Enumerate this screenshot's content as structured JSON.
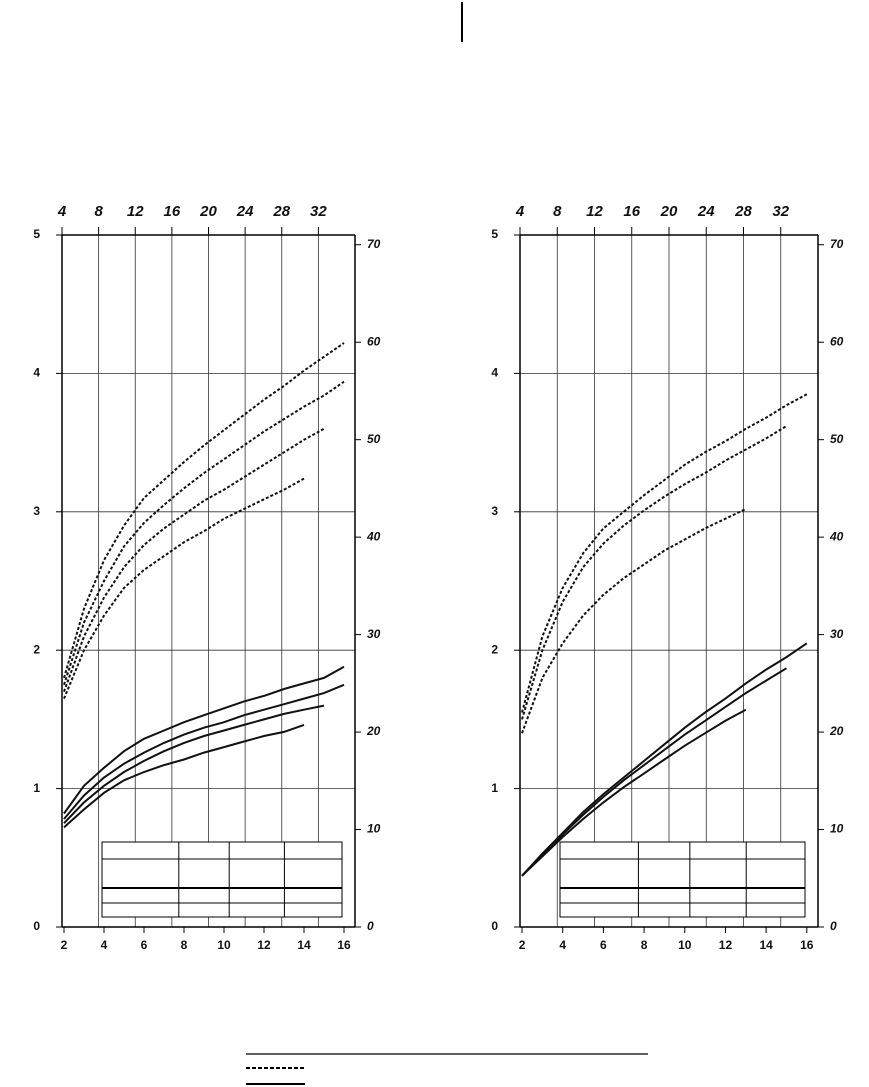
{
  "chart_data": [
    {
      "type": "line",
      "x": [
        2,
        3,
        4,
        5,
        6,
        7,
        8,
        9,
        10,
        11,
        12,
        13,
        14,
        15,
        16
      ],
      "xlim": [
        1.9,
        16.55
      ],
      "xticks": [
        2,
        4,
        6,
        8,
        10,
        12,
        14,
        16
      ],
      "x2lim": [
        4,
        36
      ],
      "x2ticks": [
        4,
        8,
        12,
        16,
        20,
        24,
        28,
        32
      ],
      "ylim": [
        0,
        5
      ],
      "yticks": [
        0,
        1,
        2,
        3,
        4,
        5
      ],
      "y2lim": [
        0,
        71
      ],
      "y2ticks": [
        0,
        10,
        20,
        30,
        40,
        50,
        60,
        70
      ],
      "grid": true,
      "series": [
        {
          "style": "dashed",
          "color": "#111111",
          "values": [
            1.8,
            2.3,
            2.65,
            2.9,
            3.1,
            3.23,
            3.36,
            3.48,
            3.59,
            3.7,
            3.81,
            3.91,
            4.02,
            4.12,
            4.22
          ]
        },
        {
          "style": "dashed",
          "color": "#111111",
          "values": [
            1.75,
            2.2,
            2.5,
            2.75,
            2.92,
            3.05,
            3.17,
            3.28,
            3.38,
            3.48,
            3.58,
            3.67,
            3.76,
            3.84,
            3.94
          ]
        },
        {
          "style": "dashed",
          "color": "#111111",
          "values": [
            1.7,
            2.1,
            2.38,
            2.6,
            2.76,
            2.88,
            2.98,
            3.08,
            3.16,
            3.25,
            3.34,
            3.43,
            3.52,
            3.6,
            null
          ]
        },
        {
          "style": "dashed",
          "color": "#111111",
          "values": [
            1.65,
            2.0,
            2.25,
            2.45,
            2.58,
            2.68,
            2.78,
            2.86,
            2.95,
            3.02,
            3.09,
            3.16,
            3.24,
            null,
            null
          ]
        },
        {
          "style": "solid",
          "color": "#111111",
          "values": [
            0.82,
            1.02,
            1.15,
            1.27,
            1.36,
            1.42,
            1.48,
            1.53,
            1.58,
            1.63,
            1.67,
            1.72,
            1.76,
            1.8,
            1.88
          ]
        },
        {
          "style": "solid",
          "color": "#111111",
          "values": [
            0.78,
            0.95,
            1.08,
            1.18,
            1.26,
            1.33,
            1.39,
            1.44,
            1.48,
            1.53,
            1.57,
            1.61,
            1.65,
            1.69,
            1.75
          ]
        },
        {
          "style": "solid",
          "color": "#111111",
          "values": [
            0.75,
            0.9,
            1.02,
            1.12,
            1.2,
            1.27,
            1.33,
            1.38,
            1.42,
            1.46,
            1.5,
            1.54,
            1.57,
            1.6,
            null
          ]
        },
        {
          "style": "solid",
          "color": "#111111",
          "values": [
            0.72,
            0.85,
            0.97,
            1.06,
            1.12,
            1.17,
            1.21,
            1.26,
            1.3,
            1.34,
            1.38,
            1.41,
            1.46,
            null,
            null
          ]
        }
      ]
    },
    {
      "type": "line",
      "x": [
        2,
        3,
        4,
        5,
        6,
        7,
        8,
        9,
        10,
        11,
        12,
        13,
        14,
        15,
        16
      ],
      "xlim": [
        1.9,
        16.55
      ],
      "xticks": [
        2,
        4,
        6,
        8,
        10,
        12,
        14,
        16
      ],
      "x2lim": [
        4,
        36
      ],
      "x2ticks": [
        4,
        8,
        12,
        16,
        20,
        24,
        28,
        32
      ],
      "ylim": [
        0,
        5
      ],
      "yticks": [
        0,
        1,
        2,
        3,
        4,
        5
      ],
      "y2lim": [
        0,
        71
      ],
      "y2ticks": [
        0,
        10,
        20,
        30,
        40,
        50,
        60,
        70
      ],
      "grid": true,
      "series": [
        {
          "style": "dashed",
          "color": "#111111",
          "values": [
            1.55,
            2.1,
            2.45,
            2.7,
            2.88,
            3.0,
            3.12,
            3.23,
            3.34,
            3.43,
            3.51,
            3.6,
            3.68,
            3.77,
            3.85
          ]
        },
        {
          "style": "dashed",
          "color": "#111111",
          "values": [
            1.5,
            2.0,
            2.35,
            2.6,
            2.77,
            2.9,
            3.01,
            3.11,
            3.2,
            3.28,
            3.37,
            3.45,
            3.53,
            3.62,
            null
          ]
        },
        {
          "style": "dashed",
          "color": "#111111",
          "values": [
            1.4,
            1.8,
            2.05,
            2.25,
            2.4,
            2.52,
            2.62,
            2.72,
            2.8,
            2.88,
            2.95,
            3.02,
            null,
            null,
            null
          ]
        },
        {
          "style": "solid",
          "color": "#111111",
          "values": [
            0.37,
            0.53,
            0.68,
            0.83,
            0.96,
            1.08,
            1.2,
            1.32,
            1.44,
            1.55,
            1.65,
            1.76,
            1.86,
            1.95,
            2.05
          ]
        },
        {
          "style": "solid",
          "color": "#111111",
          "values": [
            0.37,
            0.52,
            0.67,
            0.81,
            0.94,
            1.06,
            1.17,
            1.28,
            1.39,
            1.49,
            1.59,
            1.69,
            1.78,
            1.87,
            null
          ]
        },
        {
          "style": "solid",
          "color": "#111111",
          "values": [
            0.37,
            0.51,
            0.65,
            0.78,
            0.9,
            1.01,
            1.11,
            1.21,
            1.31,
            1.4,
            1.49,
            1.57,
            null,
            null,
            null
          ]
        }
      ]
    }
  ]
}
